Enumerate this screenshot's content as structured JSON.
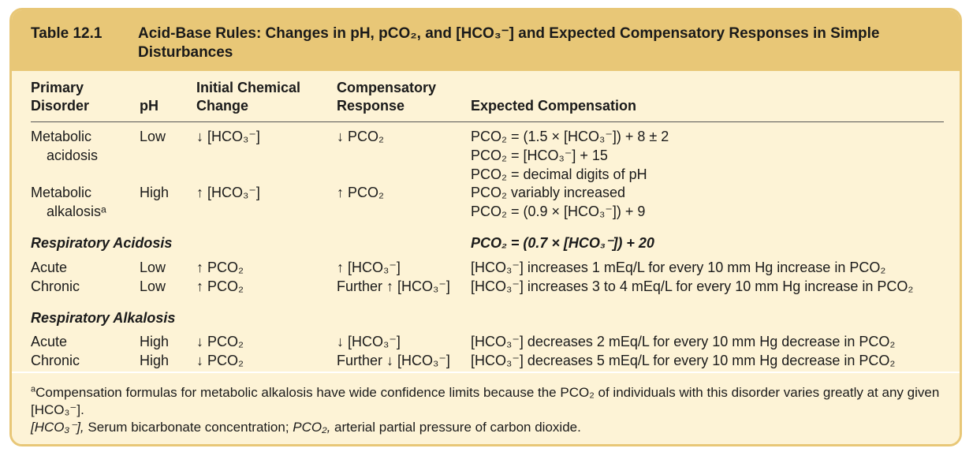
{
  "table": {
    "number": "Table 12.1",
    "title": "Acid-Base Rules: Changes in pH, pCO₂, and [HCO₃⁻] and Expected Compensatory Responses in Simple Disturbances",
    "headers": {
      "primary_disorder": [
        "Primary",
        "Disorder"
      ],
      "ph": "pH",
      "initial_change": [
        "Initial Chemical",
        "Change"
      ],
      "compensatory": [
        "Compensatory",
        "Response"
      ],
      "expected": "Expected Compensation"
    },
    "rows": [
      {
        "disorder": [
          "Metabolic",
          "acidosis"
        ],
        "ph": "Low",
        "change": "↓ [HCO₃⁻]",
        "response": "↓ PCO₂",
        "expected": [
          "PCO₂ = (1.5 × [HCO₃⁻]) + 8 ± 2",
          "PCO₂ = [HCO₃⁻] + 15",
          "PCO₂ = decimal digits of pH"
        ]
      },
      {
        "disorder": [
          "Metabolic",
          "alkalosisᵃ"
        ],
        "ph": "High",
        "change": "↑ [HCO₃⁻]",
        "response": "↑ PCO₂",
        "expected": [
          "PCO₂ variably increased",
          "PCO₂ = (0.9 × [HCO₃⁻]) + 9"
        ]
      }
    ],
    "resp_acidosis": {
      "label": "Respiratory Acidosis",
      "formula": "PCO₂ = (0.7 × [HCO₃⁻]) + 20",
      "rows": [
        {
          "type": "Acute",
          "ph": "Low",
          "change": "↑ PCO₂",
          "response": "↑ [HCO₃⁻]",
          "expected": "[HCO₃⁻] increases 1 mEq/L for every 10 mm Hg increase in PCO₂"
        },
        {
          "type": "Chronic",
          "ph": "Low",
          "change": "↑ PCO₂",
          "response": "Further ↑ [HCO₃⁻]",
          "expected": "[HCO₃⁻] increases 3 to 4 mEq/L for every 10 mm Hg increase in PCO₂"
        }
      ]
    },
    "resp_alkalosis": {
      "label": "Respiratory Alkalosis",
      "rows": [
        {
          "type": "Acute",
          "ph": "High",
          "change": "↓ PCO₂",
          "response": "↓ [HCO₃⁻]",
          "expected": "[HCO₃⁻] decreases 2 mEq/L for every 10 mm Hg decrease in PCO₂"
        },
        {
          "type": "Chronic",
          "ph": "High",
          "change": "↓ PCO₂",
          "response": "Further ↓ [HCO₃⁻]",
          "expected": "[HCO₃⁻] decreases 5 mEq/L for every 10 mm Hg decrease in PCO₂"
        }
      ]
    },
    "footnote_marker": "a",
    "footnote_a": "Compensation formulas for metabolic alkalosis have wide confidence limits because the PCO₂ of individuals with this disorder varies greatly at any given [HCO₃⁻].",
    "abbrev_hco3": "[HCO₃⁻],",
    "abbrev_hco3_def": " Serum bicarbonate concentration; ",
    "abbrev_pco2": "PCO₂,",
    "abbrev_pco2_def": " arterial partial pressure of carbon dioxide."
  }
}
